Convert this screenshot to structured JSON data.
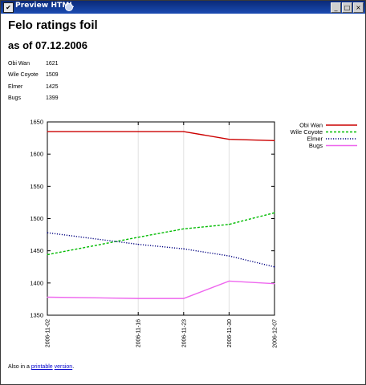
{
  "window": {
    "title": "Preview HTML",
    "controls": {
      "minimize": "_",
      "maximize": "□",
      "close": "×"
    }
  },
  "page": {
    "heading": "Felo ratings foil",
    "subheading": "as of 07.12.2006",
    "ratings": [
      {
        "name": "Obi Wan",
        "rating": "1621"
      },
      {
        "name": "Wile Coyote",
        "rating": "1509"
      },
      {
        "name": "Elmer",
        "rating": "1425"
      },
      {
        "name": "Bugs",
        "rating": "1399"
      }
    ],
    "footer": {
      "prefix": "Also in a",
      "link1": "printable",
      "link2": "version",
      "suffix": "."
    }
  },
  "chart_data": {
    "type": "line",
    "x": [
      "2006-11-02",
      "2006-11-16",
      "2006-11-23",
      "2006-11-30",
      "2006-12-07"
    ],
    "x_days": [
      0,
      14,
      21,
      28,
      35
    ],
    "ylim": [
      1350,
      1650
    ],
    "yticks": [
      1350,
      1400,
      1450,
      1500,
      1550,
      1600,
      1650
    ],
    "grid": "vertical",
    "legend": "top-right",
    "series": [
      {
        "name": "Obi Wan",
        "color": "#cc0000",
        "style": "solid",
        "values": [
          1635,
          1635,
          1635,
          1623,
          1621
        ]
      },
      {
        "name": "Wile Coyote",
        "color": "#00bb00",
        "style": "dashed",
        "values": [
          1444,
          1471,
          1484,
          1491,
          1509
        ]
      },
      {
        "name": "Elmer",
        "color": "#000080",
        "style": "dotted",
        "values": [
          1478,
          1460,
          1453,
          1442,
          1425
        ]
      },
      {
        "name": "Bugs",
        "color": "#ee66ee",
        "style": "solid",
        "values": [
          1378,
          1376,
          1376,
          1403,
          1399
        ]
      }
    ]
  }
}
